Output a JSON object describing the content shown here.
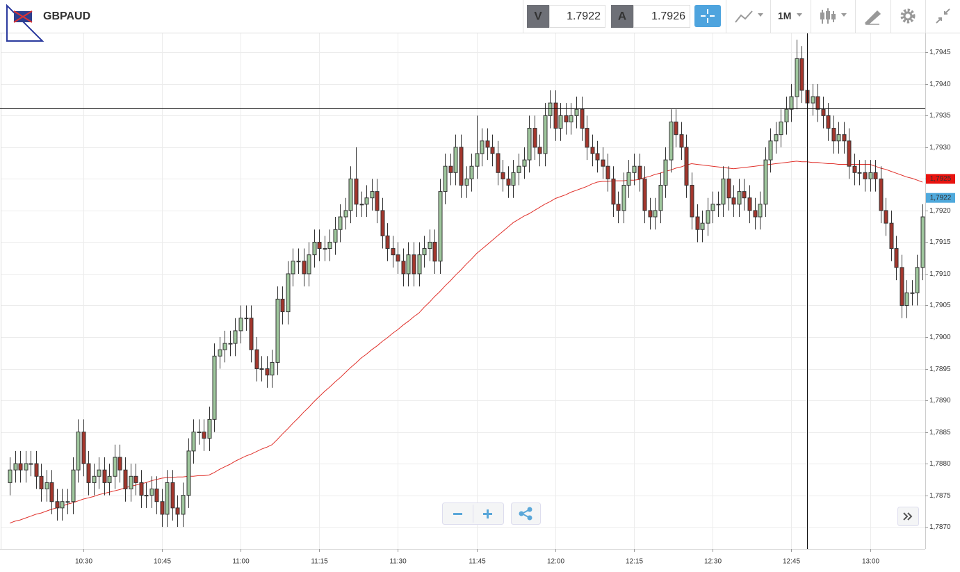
{
  "toolbar": {
    "symbol": "GBPAUD",
    "bid_label": "V",
    "bid": 1.7922,
    "ask_label": "A",
    "ask": 1.7926,
    "period": "1M"
  },
  "chart_data": {
    "type": "candlestick",
    "grid": true,
    "up_color": "#9fc79d",
    "down_color": "#a3362c",
    "ylim": [
      1.78665,
      1.7948
    ],
    "yticks": [
      {
        "value": 1.787,
        "label": "1,7870"
      },
      {
        "value": 1.7875,
        "label": "1,7875"
      },
      {
        "value": 1.788,
        "label": "1,7880"
      },
      {
        "value": 1.7885,
        "label": "1,7885"
      },
      {
        "value": 1.789,
        "label": "1,7890"
      },
      {
        "value": 1.7895,
        "label": "1,7895"
      },
      {
        "value": 1.79,
        "label": "1,7900"
      },
      {
        "value": 1.7905,
        "label": "1,7905"
      },
      {
        "value": 1.791,
        "label": "1,7910"
      },
      {
        "value": 1.7915,
        "label": "1,7915"
      },
      {
        "value": 1.792,
        "label": "1,7920"
      },
      {
        "value": 1.7925,
        "label": "1,7925"
      },
      {
        "value": 1.793,
        "label": "1,7930"
      },
      {
        "value": 1.7935,
        "label": "1,7935"
      },
      {
        "value": 1.794,
        "label": "1,7940"
      },
      {
        "value": 1.7945,
        "label": "1,7945"
      }
    ],
    "categories": [
      null,
      null,
      null,
      null,
      null,
      null,
      null,
      null,
      null,
      null,
      null,
      null,
      null,
      null,
      "10:30",
      null,
      null,
      null,
      null,
      null,
      null,
      null,
      null,
      null,
      null,
      null,
      null,
      null,
      null,
      "10:45",
      null,
      null,
      null,
      null,
      null,
      null,
      null,
      null,
      null,
      null,
      null,
      null,
      null,
      null,
      "11:00",
      null,
      null,
      null,
      null,
      null,
      null,
      null,
      null,
      null,
      null,
      null,
      null,
      null,
      null,
      "11:15",
      null,
      null,
      null,
      null,
      null,
      null,
      null,
      null,
      null,
      null,
      null,
      null,
      null,
      null,
      "11:30",
      null,
      null,
      null,
      null,
      null,
      null,
      null,
      null,
      null,
      null,
      null,
      null,
      null,
      null,
      "11:45",
      null,
      null,
      null,
      null,
      null,
      null,
      null,
      null,
      null,
      null,
      null,
      null,
      null,
      null,
      "12:00",
      null,
      null,
      null,
      null,
      null,
      null,
      null,
      null,
      null,
      null,
      null,
      null,
      null,
      null,
      "12:15",
      null,
      null,
      null,
      null,
      null,
      null,
      null,
      null,
      null,
      null,
      null,
      null,
      null,
      null,
      "12:30",
      null,
      null,
      null,
      null,
      null,
      null,
      null,
      null,
      null,
      null,
      null,
      null,
      null,
      null,
      "12:45",
      null,
      null,
      null,
      null,
      null,
      null,
      null,
      null,
      null,
      null,
      null,
      null,
      null,
      null,
      "13:00",
      null,
      null,
      null,
      null,
      null,
      null,
      null,
      null,
      null,
      null
    ],
    "open": [
      1.7877,
      1.7879,
      1.788,
      1.7879,
      1.788,
      1.788,
      1.7878,
      1.7876,
      1.7877,
      1.7874,
      1.7873,
      1.7874,
      1.7874,
      1.7879,
      1.7885,
      1.788,
      1.7877,
      1.7878,
      1.7879,
      1.7877,
      1.7878,
      1.7881,
      1.7879,
      1.7876,
      1.7878,
      1.7877,
      1.7875,
      1.7875,
      1.7876,
      1.7874,
      1.7872,
      1.7877,
      1.7873,
      1.7872,
      1.7875,
      1.7882,
      1.7885,
      1.7885,
      1.7884,
      1.7887,
      1.7897,
      1.7898,
      1.7899,
      1.7899,
      1.7901,
      1.7903,
      1.7903,
      1.7898,
      1.7895,
      1.7895,
      1.7894,
      1.7896,
      1.7906,
      1.7904,
      1.791,
      1.7912,
      1.7912,
      1.791,
      1.7913,
      1.7915,
      1.7914,
      1.7914,
      1.7915,
      1.7917,
      1.7919,
      1.792,
      1.7925,
      1.7921,
      1.7921,
      1.7922,
      1.7923,
      1.792,
      1.7916,
      1.7914,
      1.7913,
      1.7912,
      1.791,
      1.7913,
      1.791,
      1.7913,
      1.7914,
      1.7915,
      1.7912,
      1.7923,
      1.7927,
      1.7926,
      1.793,
      1.7924,
      1.7925,
      1.7927,
      1.7929,
      1.7931,
      1.793,
      1.7929,
      1.7926,
      1.7925,
      1.7924,
      1.7926,
      1.7927,
      1.7928,
      1.7933,
      1.793,
      1.7929,
      1.7935,
      1.7937,
      1.7933,
      1.7935,
      1.7934,
      1.7935,
      1.7936,
      1.7933,
      1.793,
      1.7929,
      1.7928,
      1.7927,
      1.7925,
      1.7921,
      1.792,
      1.7924,
      1.7926,
      1.7927,
      1.7925,
      1.792,
      1.7919,
      1.792,
      1.7924,
      1.7928,
      1.7934,
      1.7932,
      1.793,
      1.7924,
      1.7919,
      1.7917,
      1.7918,
      1.792,
      1.7921,
      1.7921,
      1.7925,
      1.7922,
      1.7921,
      1.7923,
      1.7922,
      1.792,
      1.7919,
      1.7921,
      1.7928,
      1.7931,
      1.7932,
      1.7934,
      1.7936,
      1.7938,
      1.7944,
      1.7939,
      1.7937,
      1.7938,
      1.7936,
      1.7935,
      1.7933,
      1.7931,
      1.7932,
      1.7931,
      1.7927,
      1.7926,
      1.7926,
      1.7925,
      1.7926,
      1.7925,
      1.792,
      1.7918,
      1.7914,
      1.7911,
      1.7905,
      1.7907,
      1.7907,
      1.7911
    ],
    "high": [
      1.7881,
      1.7882,
      1.7882,
      1.7882,
      1.7882,
      1.7882,
      1.788,
      1.7879,
      1.7879,
      1.7876,
      1.7876,
      1.7876,
      1.7881,
      1.7887,
      1.7887,
      1.7882,
      1.788,
      1.7881,
      1.7881,
      1.788,
      1.7883,
      1.7883,
      1.7881,
      1.788,
      1.788,
      1.7879,
      1.7877,
      1.7878,
      1.7878,
      1.7876,
      1.7879,
      1.7879,
      1.7875,
      1.7877,
      1.7884,
      1.7887,
      1.7887,
      1.7887,
      1.7889,
      1.7899,
      1.79,
      1.7901,
      1.7901,
      1.7903,
      1.7905,
      1.7905,
      1.7905,
      1.79,
      1.7897,
      1.7897,
      1.7898,
      1.7908,
      1.7908,
      1.7912,
      1.7914,
      1.7914,
      1.7914,
      1.7915,
      1.7917,
      1.7917,
      1.7916,
      1.7917,
      1.7919,
      1.7921,
      1.7922,
      1.7927,
      1.793,
      1.7923,
      1.7924,
      1.7925,
      1.7925,
      1.7922,
      1.7918,
      1.7916,
      1.7915,
      1.7914,
      1.7915,
      1.7915,
      1.7915,
      1.7916,
      1.7917,
      1.7917,
      1.7925,
      1.7929,
      1.7929,
      1.7932,
      1.7932,
      1.7927,
      1.7929,
      1.7935,
      1.7933,
      1.7933,
      1.7932,
      1.7931,
      1.7928,
      1.7927,
      1.7928,
      1.7929,
      1.793,
      1.7935,
      1.7935,
      1.7932,
      1.7937,
      1.7939,
      1.7939,
      1.7937,
      1.7937,
      1.7937,
      1.7938,
      1.7938,
      1.7935,
      1.7932,
      1.7931,
      1.793,
      1.7929,
      1.7927,
      1.7923,
      1.7926,
      1.7928,
      1.7929,
      1.7929,
      1.7927,
      1.7922,
      1.7922,
      1.7926,
      1.793,
      1.7936,
      1.7936,
      1.7934,
      1.7932,
      1.7926,
      1.7921,
      1.792,
      1.7922,
      1.7923,
      1.7923,
      1.7927,
      1.7927,
      1.7924,
      1.7925,
      1.7925,
      1.7924,
      1.7922,
      1.7923,
      1.793,
      1.7933,
      1.7934,
      1.7936,
      1.7938,
      1.794,
      1.7947,
      1.7946,
      1.7941,
      1.794,
      1.794,
      1.7938,
      1.7937,
      1.7935,
      1.7934,
      1.7934,
      1.7933,
      1.7929,
      1.7928,
      1.7928,
      1.7928,
      1.7928,
      1.7927,
      1.7922,
      1.792,
      1.7916,
      1.7913,
      1.7909,
      1.7909,
      1.7913,
      1.7921
    ],
    "low": [
      1.7875,
      1.7877,
      1.7877,
      1.7877,
      1.7878,
      1.7876,
      1.7874,
      1.7874,
      1.7872,
      1.7871,
      1.7871,
      1.7872,
      1.7872,
      1.7877,
      1.7878,
      1.7875,
      1.7875,
      1.7876,
      1.7875,
      1.7875,
      1.7876,
      1.7877,
      1.7874,
      1.7874,
      1.7875,
      1.7873,
      1.7873,
      1.7873,
      1.7872,
      1.787,
      1.787,
      1.7871,
      1.787,
      1.787,
      1.7873,
      1.788,
      1.7883,
      1.7882,
      1.7882,
      1.7885,
      1.7895,
      1.7896,
      1.7897,
      1.7897,
      1.7899,
      1.7901,
      1.7896,
      1.7893,
      1.7893,
      1.7892,
      1.7892,
      1.7894,
      1.7902,
      1.7902,
      1.7908,
      1.791,
      1.7908,
      1.7908,
      1.7911,
      1.7912,
      1.7912,
      1.7912,
      1.7913,
      1.7915,
      1.7917,
      1.7918,
      1.7919,
      1.7919,
      1.7919,
      1.792,
      1.7918,
      1.7914,
      1.7912,
      1.7911,
      1.791,
      1.7908,
      1.7908,
      1.7908,
      1.7908,
      1.7911,
      1.7912,
      1.791,
      1.791,
      1.7921,
      1.7924,
      1.7924,
      1.7922,
      1.7922,
      1.7923,
      1.7925,
      1.7927,
      1.7928,
      1.7927,
      1.7924,
      1.7923,
      1.7922,
      1.7922,
      1.7924,
      1.7925,
      1.7926,
      1.7928,
      1.7927,
      1.7927,
      1.7933,
      1.7931,
      1.7931,
      1.7932,
      1.7932,
      1.7933,
      1.7931,
      1.7928,
      1.7927,
      1.7926,
      1.7925,
      1.7923,
      1.7919,
      1.7918,
      1.7918,
      1.7922,
      1.7924,
      1.7923,
      1.7918,
      1.7917,
      1.7917,
      1.7918,
      1.7922,
      1.7926,
      1.793,
      1.7928,
      1.7922,
      1.7917,
      1.7915,
      1.7915,
      1.7916,
      1.7918,
      1.7919,
      1.7919,
      1.792,
      1.7919,
      1.7919,
      1.792,
      1.7918,
      1.7917,
      1.7917,
      1.7919,
      1.7926,
      1.7929,
      1.793,
      1.7932,
      1.7934,
      1.7936,
      1.7937,
      1.7935,
      1.7935,
      1.7934,
      1.7933,
      1.7931,
      1.7929,
      1.7929,
      1.7929,
      1.7925,
      1.7924,
      1.7924,
      1.7923,
      1.7923,
      1.7923,
      1.7918,
      1.7916,
      1.7912,
      1.7909,
      1.7903,
      1.7903,
      1.7905,
      1.7905,
      1.7909
    ],
    "close": [
      1.7879,
      1.788,
      1.7879,
      1.788,
      1.788,
      1.7878,
      1.7876,
      1.7877,
      1.7874,
      1.7873,
      1.7874,
      1.7874,
      1.7879,
      1.7885,
      1.788,
      1.7877,
      1.7878,
      1.7879,
      1.7877,
      1.7878,
      1.7881,
      1.7879,
      1.7876,
      1.7878,
      1.7877,
      1.7875,
      1.7875,
      1.7876,
      1.7874,
      1.7872,
      1.7877,
      1.7873,
      1.7872,
      1.7875,
      1.7882,
      1.7885,
      1.7885,
      1.7884,
      1.7887,
      1.7897,
      1.7898,
      1.7899,
      1.7899,
      1.7901,
      1.7903,
      1.7903,
      1.7898,
      1.7895,
      1.7895,
      1.7894,
      1.7896,
      1.7906,
      1.7904,
      1.791,
      1.7912,
      1.7912,
      1.791,
      1.7913,
      1.7915,
      1.7914,
      1.7914,
      1.7915,
      1.7917,
      1.7919,
      1.792,
      1.7925,
      1.7921,
      1.7921,
      1.7922,
      1.7923,
      1.792,
      1.7916,
      1.7914,
      1.7913,
      1.7912,
      1.791,
      1.7913,
      1.791,
      1.7913,
      1.7914,
      1.7915,
      1.7912,
      1.7923,
      1.7927,
      1.7926,
      1.793,
      1.7924,
      1.7925,
      1.7927,
      1.7929,
      1.7931,
      1.793,
      1.7929,
      1.7926,
      1.7925,
      1.7924,
      1.7926,
      1.7927,
      1.7928,
      1.7933,
      1.793,
      1.7929,
      1.7935,
      1.7937,
      1.7933,
      1.7935,
      1.7934,
      1.7935,
      1.7936,
      1.7933,
      1.793,
      1.7929,
      1.7928,
      1.7927,
      1.7925,
      1.7921,
      1.792,
      1.7924,
      1.7926,
      1.7927,
      1.7925,
      1.792,
      1.7919,
      1.792,
      1.7924,
      1.7928,
      1.7934,
      1.7932,
      1.793,
      1.7924,
      1.7919,
      1.7917,
      1.7918,
      1.792,
      1.7921,
      1.7921,
      1.7925,
      1.7922,
      1.7921,
      1.7923,
      1.7922,
      1.792,
      1.7919,
      1.7921,
      1.7928,
      1.7931,
      1.7932,
      1.7934,
      1.7936,
      1.7938,
      1.7944,
      1.7939,
      1.7937,
      1.7938,
      1.7936,
      1.7935,
      1.7933,
      1.7931,
      1.7932,
      1.7931,
      1.7927,
      1.7926,
      1.7926,
      1.7925,
      1.7926,
      1.7925,
      1.792,
      1.7918,
      1.7914,
      1.7911,
      1.7905,
      1.7907,
      1.7907,
      1.7911,
      1.7919
    ],
    "moving_average": {
      "color": "#e0312b",
      "values": [
        1.78706,
        1.78709,
        1.78711,
        1.78714,
        1.78717,
        1.7872,
        1.78722,
        1.78725,
        1.78728,
        1.7873,
        1.78733,
        1.78736,
        1.78738,
        1.78741,
        1.78744,
        1.78746,
        1.78748,
        1.78751,
        1.78753,
        1.78755,
        1.78757,
        1.78759,
        1.78762,
        1.78764,
        1.78766,
        1.78768,
        1.7877,
        1.78773,
        1.78775,
        1.78777,
        1.78778,
        1.78778,
        1.78779,
        1.78779,
        1.7878,
        1.7878,
        1.78781,
        1.78781,
        1.78782,
        1.78786,
        1.78791,
        1.78795,
        1.78799,
        1.78804,
        1.78808,
        1.78812,
        1.78815,
        1.78819,
        1.78823,
        1.78826,
        1.7883,
        1.78838,
        1.78847,
        1.78855,
        1.78864,
        1.78872,
        1.78881,
        1.78889,
        1.78898,
        1.78906,
        1.78914,
        1.78921,
        1.78929,
        1.78936,
        1.78944,
        1.78952,
        1.78959,
        1.78967,
        1.78973,
        1.7898,
        1.78986,
        1.78993,
        1.78999,
        1.79006,
        1.79012,
        1.79019,
        1.79025,
        1.79032,
        1.79038,
        1.79047,
        1.79055,
        1.79064,
        1.79072,
        1.79081,
        1.79089,
        1.79098,
        1.79106,
        1.79115,
        1.79123,
        1.79132,
        1.79139,
        1.79146,
        1.79153,
        1.7916,
        1.79167,
        1.79174,
        1.79181,
        1.79186,
        1.79191,
        1.79195,
        1.792,
        1.79205,
        1.7921,
        1.79214,
        1.79219,
        1.79222,
        1.79225,
        1.79229,
        1.79232,
        1.79235,
        1.79238,
        1.79242,
        1.79245,
        1.79246,
        1.79246,
        1.79247,
        1.79247,
        1.79247,
        1.79248,
        1.79248,
        1.79249,
        1.79252,
        1.79254,
        1.79257,
        1.79259,
        1.79262,
        1.79264,
        1.79267,
        1.79269,
        1.79272,
        1.79274,
        1.79273,
        1.79272,
        1.79271,
        1.7927,
        1.79269,
        1.79268,
        1.79267,
        1.79266,
        1.79267,
        1.79268,
        1.79269,
        1.7927,
        1.79271,
        1.79272,
        1.79273,
        1.79274,
        1.79275,
        1.79276,
        1.79277,
        1.79278,
        1.79277,
        1.79277,
        1.79276,
        1.79276,
        1.79275,
        1.79274,
        1.79274,
        1.79273,
        1.79273,
        1.79273,
        1.79273,
        1.79273,
        1.79273,
        1.79273,
        1.7927,
        1.79267,
        1.79265,
        1.79262,
        1.79259,
        1.79256,
        1.79253,
        1.79251,
        1.79248,
        1.79245
      ]
    },
    "price_markers": [
      {
        "value": 1.7925,
        "label": "1,7925",
        "color": "#e8130f"
      },
      {
        "value": 1.7922,
        "label": "1,7922",
        "color": "#4fa9dc"
      }
    ]
  }
}
